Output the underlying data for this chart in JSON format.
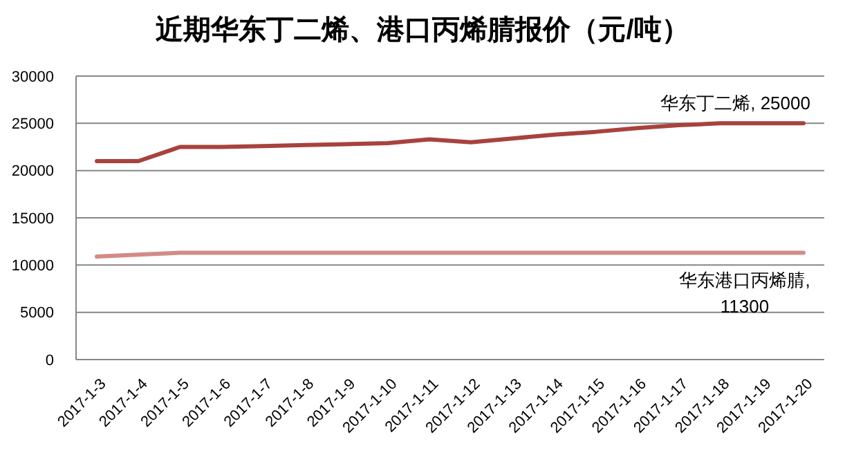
{
  "chart_data": {
    "type": "line",
    "title": "近期华东丁二烯、港口丙烯腈报价（元/吨）",
    "categories": [
      "2017-1-3",
      "2017-1-4",
      "2017-1-5",
      "2017-1-6",
      "2017-1-7",
      "2017-1-8",
      "2017-1-9",
      "2017-1-10",
      "2017-1-11",
      "2017-1-12",
      "2017-1-13",
      "2017-1-14",
      "2017-1-15",
      "2017-1-16",
      "2017-1-17",
      "2017-1-18",
      "2017-1-19",
      "2017-1-20"
    ],
    "series": [
      {
        "color": "#a8423e",
        "values": [
          21000,
          21000,
          22500,
          22500,
          22600,
          22700,
          22800,
          22900,
          23300,
          23000,
          23400,
          23800,
          24100,
          24500,
          24800,
          25000,
          25000,
          25000
        ],
        "value_labels": [
          null,
          null,
          null,
          null,
          null,
          null,
          null,
          null,
          null,
          null,
          null,
          null,
          null,
          null,
          null,
          null,
          null,
          "华东丁二烯, 25000"
        ]
      },
      {
        "color": "#d38b88",
        "values": [
          10900,
          11100,
          11300,
          11300,
          11300,
          11300,
          11300,
          11300,
          11300,
          11300,
          11300,
          11300,
          11300,
          11300,
          11300,
          11300,
          11300,
          11300
        ],
        "value_labels": [
          null,
          null,
          null,
          null,
          null,
          null,
          null,
          null,
          null,
          null,
          null,
          null,
          null,
          null,
          null,
          null,
          null,
          "华东港口丙烯腈, 11300"
        ]
      }
    ],
    "ylim": [
      0,
      30000
    ],
    "yticks": [
      0,
      5000,
      10000,
      15000,
      20000,
      25000,
      30000
    ],
    "grid": "y"
  }
}
